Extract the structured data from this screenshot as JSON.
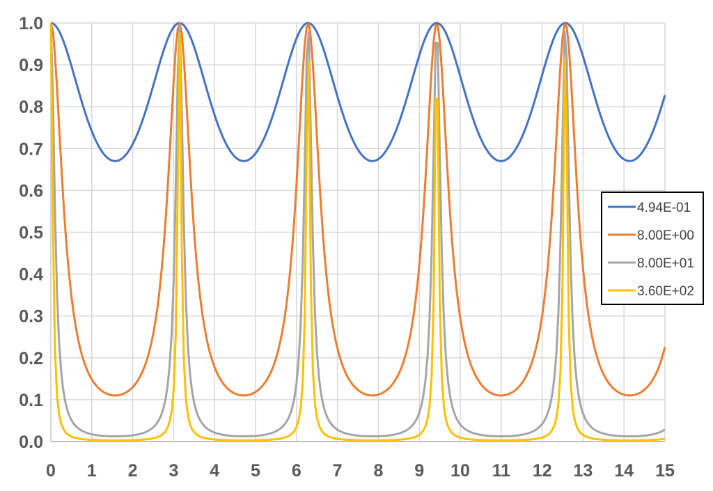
{
  "chart_data": {
    "type": "line",
    "title": "",
    "xlabel": "",
    "ylabel": "",
    "xlim": [
      0,
      15
    ],
    "ylim": [
      0,
      1
    ],
    "x_ticks": [
      "0",
      "1",
      "2",
      "3",
      "4",
      "5",
      "6",
      "7",
      "8",
      "9",
      "10",
      "11",
      "12",
      "13",
      "14",
      "15"
    ],
    "y_ticks": [
      "0.0",
      "0.1",
      "0.2",
      "0.3",
      "0.4",
      "0.5",
      "0.6",
      "0.7",
      "0.8",
      "0.9",
      "1.0"
    ],
    "grid": true,
    "legend_position": "right",
    "x_sample_step": 0.05,
    "series": [
      {
        "name": "4.94E-01",
        "color": "#4472C4",
        "minimum": 0.67,
        "maximum": 1.0,
        "period": 3.14159
      },
      {
        "name": "8.00E+00",
        "color": "#ED7D31",
        "minimum": 0.11,
        "maximum": 1.0,
        "period": 3.14159
      },
      {
        "name": "8.00E+01",
        "color": "#A5A5A5",
        "minimum": 0.0124,
        "maximum": 1.0,
        "period": 3.14159
      },
      {
        "name": "3.60E+02",
        "color": "#FFC000",
        "minimum": 0.0028,
        "maximum": 1.0,
        "period": 3.14159
      }
    ]
  }
}
